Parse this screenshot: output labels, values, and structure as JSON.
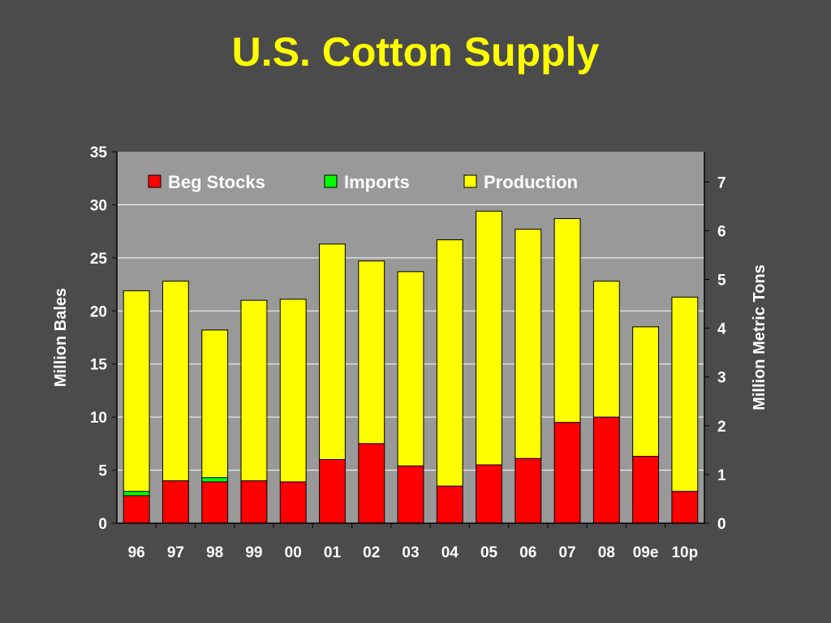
{
  "title": "U.S. Cotton Supply",
  "colors": {
    "background": "#4b4b4b",
    "plot_area": "#999999",
    "title": "#ffff00",
    "beg_stocks": "#ff0000",
    "imports": "#00ff00",
    "production": "#ffff00"
  },
  "chart_data": {
    "type": "bar",
    "stacked": true,
    "categories": [
      "96",
      "97",
      "98",
      "99",
      "00",
      "01",
      "02",
      "03",
      "04",
      "05",
      "06",
      "07",
      "08",
      "09e",
      "10p"
    ],
    "series": [
      {
        "name": "Beg Stocks",
        "color": "#ff0000",
        "values": [
          2.6,
          4.0,
          3.9,
          4.0,
          3.9,
          6.0,
          7.5,
          5.4,
          3.5,
          5.5,
          6.1,
          9.5,
          10.0,
          6.3,
          3.0
        ]
      },
      {
        "name": "Imports",
        "color": "#00ff00",
        "values": [
          0.4,
          0.0,
          0.4,
          0.0,
          0.0,
          0.0,
          0.0,
          0.0,
          0.0,
          0.0,
          0.0,
          0.0,
          0.0,
          0.0,
          0.0
        ]
      },
      {
        "name": "Production",
        "color": "#ffff00",
        "values": [
          18.9,
          18.8,
          13.9,
          17.0,
          17.2,
          20.3,
          17.2,
          18.3,
          23.2,
          23.9,
          21.6,
          19.2,
          12.8,
          12.2,
          18.3
        ]
      }
    ],
    "ylabel": "Million Bales",
    "y2label": "Million Metric Tons",
    "ylim": [
      0,
      35
    ],
    "yticks": [
      0,
      5,
      10,
      15,
      20,
      25,
      30,
      35
    ],
    "y2lim": [
      0,
      7.62
    ],
    "y2ticks": [
      0,
      1,
      2,
      3,
      4,
      5,
      6,
      7
    ],
    "grid": true,
    "legend_position": "top-inside"
  }
}
